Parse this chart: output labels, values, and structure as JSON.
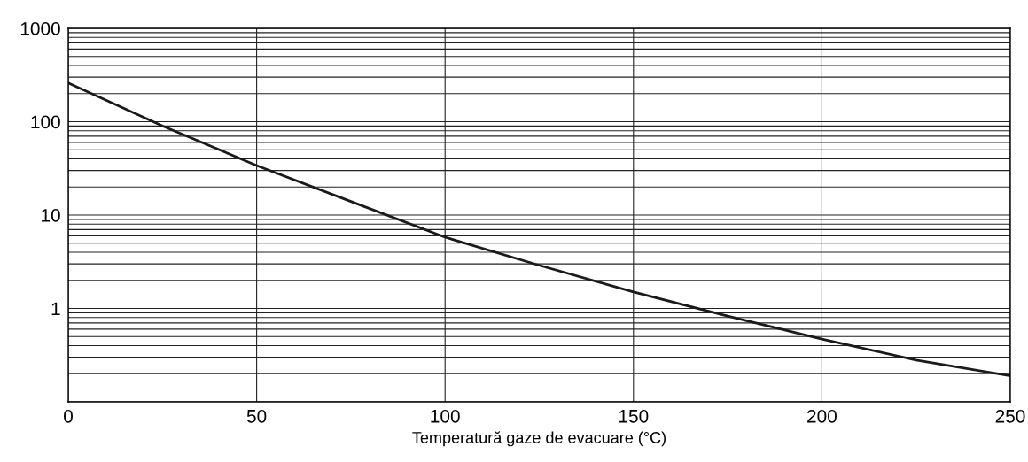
{
  "chart_data": {
    "type": "line",
    "xlabel": "Temperatură gaze de evacuare (°C)",
    "x": [
      0,
      25,
      50,
      75,
      100,
      125,
      150,
      175,
      200,
      225,
      250
    ],
    "series": [
      {
        "color": "#1a1a1a",
        "values": [
          260,
          90,
          34,
          14,
          5.8,
          2.9,
          1.5,
          0.83,
          0.47,
          0.28,
          0.19
        ]
      }
    ],
    "log": "y",
    "xlim": [
      0,
      250
    ],
    "xticks": [
      0,
      50,
      100,
      150,
      200,
      250
    ],
    "ylim": [
      0.1,
      1000
    ],
    "yticks": [
      {
        "value": 0.1,
        "label": null
      },
      1,
      10,
      100,
      1000
    ],
    "grid": true,
    "marker": "none",
    "line_style": "solid"
  }
}
